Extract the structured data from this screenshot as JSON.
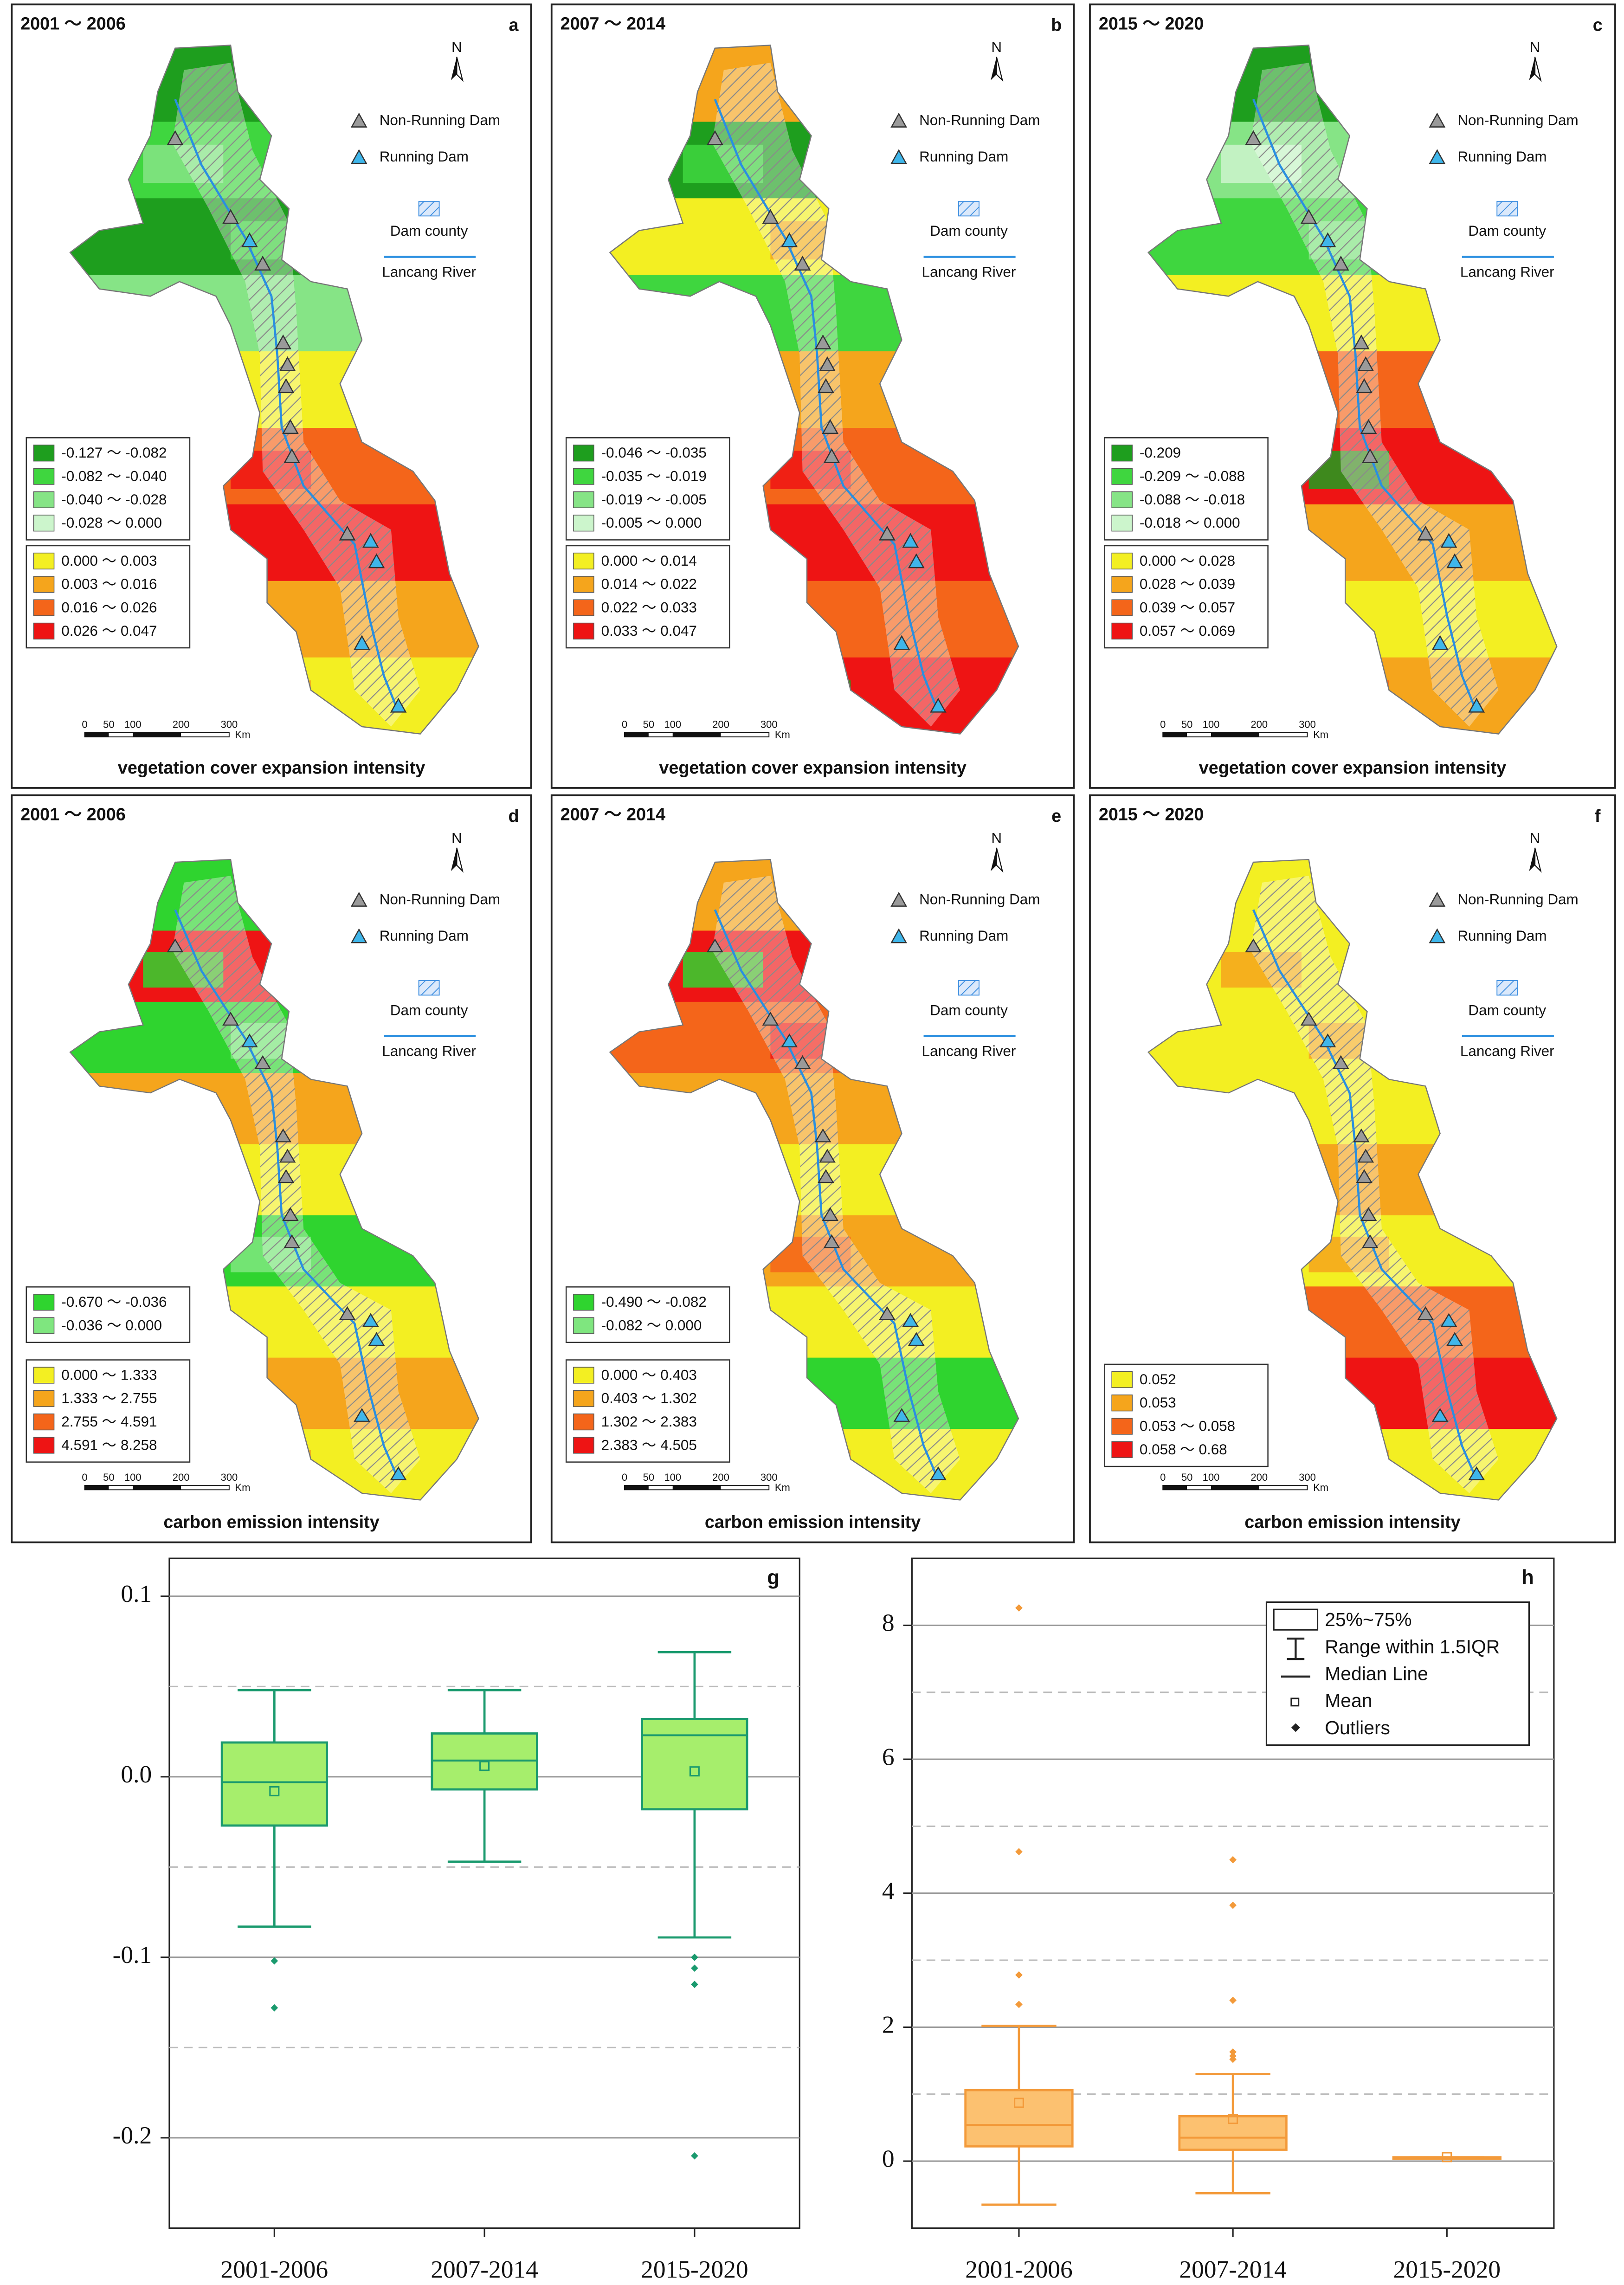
{
  "panels": [
    {
      "period": "2001 ～ 2006",
      "letter": "a",
      "caption": "vegetation cover expansion intensity",
      "negative": [
        {
          "label": "-0.127 ～ -0.082",
          "color": "#1e9e1e"
        },
        {
          "label": "-0.082 ～ -0.040",
          "color": "#3fd63f"
        },
        {
          "label": "-0.040 ～ -0.028",
          "color": "#86e486"
        },
        {
          "label": "-0.028 ～  0.000",
          "color": "#ccf5cc"
        }
      ],
      "positive": [
        {
          "label": "0.000 ～ 0.003",
          "color": "#f3ef22"
        },
        {
          "label": "0.003 ～ 0.016",
          "color": "#f5a51c"
        },
        {
          "label": "0.016 ～ 0.026",
          "color": "#f4651a"
        },
        {
          "label": "0.026 ～ 0.047",
          "color": "#ee1414"
        }
      ]
    },
    {
      "period": "2007 ～ 2014",
      "letter": "b",
      "caption": "vegetation cover expansion intensity",
      "negative": [
        {
          "label": "-0.046 ～ -0.035",
          "color": "#1e9e1e"
        },
        {
          "label": "-0.035 ～ -0.019",
          "color": "#3fd63f"
        },
        {
          "label": "-0.019 ～ -0.005",
          "color": "#86e486"
        },
        {
          "label": "-0.005 ～  0.000",
          "color": "#ccf5cc"
        }
      ],
      "positive": [
        {
          "label": "0.000 ～ 0.014",
          "color": "#f3ef22"
        },
        {
          "label": "0.014 ～ 0.022",
          "color": "#f5a51c"
        },
        {
          "label": "0.022 ～ 0.033",
          "color": "#f4651a"
        },
        {
          "label": "0.033 ～ 0.047",
          "color": "#ee1414"
        }
      ]
    },
    {
      "period": "2015 ～ 2020",
      "letter": "c",
      "caption": "vegetation cover expansion intensity",
      "negative": [
        {
          "label": "-0.209",
          "color": "#1e9e1e"
        },
        {
          "label": "-0.209 ～ -0.088",
          "color": "#3fd63f"
        },
        {
          "label": "-0.088 ～ -0.018",
          "color": "#86e486"
        },
        {
          "label": "-0.018 ～  0.000",
          "color": "#ccf5cc"
        }
      ],
      "positive": [
        {
          "label": "0.000 ～ 0.028",
          "color": "#f3ef22"
        },
        {
          "label": "0.028 ～ 0.039",
          "color": "#f5a51c"
        },
        {
          "label": "0.039 ～ 0.057",
          "color": "#f4651a"
        },
        {
          "label": "0.057 ～ 0.069",
          "color": "#ee1414"
        }
      ]
    },
    {
      "period": "2001 ～ 2006",
      "letter": "d",
      "caption": "carbon emission intensity",
      "negative": [
        {
          "label": "-0.670 ～ -0.036",
          "color": "#2fd42f"
        },
        {
          "label": "-0.036 ～ 0.000",
          "color": "#7fe67f"
        }
      ],
      "positive": [
        {
          "label": "0.000 ～ 1.333",
          "color": "#f3ef22"
        },
        {
          "label": "1.333 ～ 2.755",
          "color": "#f5a51c"
        },
        {
          "label": "2.755 ～ 4.591",
          "color": "#f4651a"
        },
        {
          "label": "4.591  ～ 8.258",
          "color": "#ee1414"
        }
      ]
    },
    {
      "period": "2007 ～ 2014",
      "letter": "e",
      "caption": "carbon emission intensity",
      "negative": [
        {
          "label": "-0.490 ～ -0.082",
          "color": "#2fd42f"
        },
        {
          "label": "-0.082 ～ 0.000",
          "color": "#7fe67f"
        }
      ],
      "positive": [
        {
          "label": "0.000 ～ 0.403",
          "color": "#f3ef22"
        },
        {
          "label": "0.403 ～ 1.302",
          "color": "#f5a51c"
        },
        {
          "label": "1.302 ～ 2.383",
          "color": "#f4651a"
        },
        {
          "label": "2.383 ～ 4.505",
          "color": "#ee1414"
        }
      ]
    },
    {
      "period": "2015 ～ 2020",
      "letter": "f",
      "caption": "carbon emission intensity",
      "negative": [],
      "positive": [
        {
          "label": "0.052",
          "color": "#f3ef22"
        },
        {
          "label": "0.053",
          "color": "#f5a51c"
        },
        {
          "label": "0.053 ～ 0.058",
          "color": "#f4651a"
        },
        {
          "label": "0.058  ～ 0.68",
          "color": "#ee1414"
        }
      ]
    }
  ],
  "map_legend": {
    "north": "N",
    "non_running": "Non-Running Dam",
    "running": "Running Dam",
    "dam_county": "Dam county",
    "river": "Lancang River",
    "scale": [
      0,
      50,
      100,
      200,
      300
    ],
    "unit": "Km"
  },
  "chart_data": [
    {
      "type": "box",
      "letter": "g",
      "categories": [
        "2001-2006",
        "2007-2014",
        "2015-2020"
      ],
      "color": "#a6ee6c",
      "edge_color": "#1a9a6e",
      "outlier_color": "#1a9a6e",
      "ylim": [
        -0.25,
        0.121
      ],
      "yticks": [
        {
          "value": 0.1,
          "label": "0.1"
        },
        {
          "value": 0,
          "label": "0.0"
        },
        -0.1,
        -0.2
      ],
      "minor_yticks": [
        0.05,
        -0.05,
        -0.15
      ],
      "boxes": [
        {
          "whisker_low": -0.083,
          "q1": -0.027,
          "median": -0.003,
          "q3": 0.019,
          "whisker_high": 0.048,
          "mean": -0.008,
          "outliers": [
            -0.102,
            -0.128
          ]
        },
        {
          "whisker_low": -0.047,
          "q1": -0.007,
          "median": 0.009,
          "q3": 0.024,
          "whisker_high": 0.048,
          "mean": 0.006,
          "outliers": []
        },
        {
          "whisker_low": -0.089,
          "q1": -0.018,
          "median": 0.023,
          "q3": 0.032,
          "whisker_high": 0.069,
          "mean": 0.003,
          "outliers": [
            -0.1,
            -0.106,
            -0.115,
            -0.21
          ]
        }
      ]
    },
    {
      "type": "box",
      "letter": "h",
      "categories": [
        "2001-2006",
        "2007-2014",
        "2015-2020"
      ],
      "color": "#fcc170",
      "edge_color": "#f39a3a",
      "outlier_color": "#f39a3a",
      "ylim": [
        -1,
        9
      ],
      "yticks": [
        0,
        2,
        4,
        6,
        8
      ],
      "minor_yticks": [
        1,
        3,
        5,
        7
      ],
      "legend": [
        "25%~75%",
        "Range within 1.5IQR",
        "Median Line",
        "Mean",
        "Outliers"
      ],
      "boxes": [
        {
          "whisker_low": -0.65,
          "q1": 0.22,
          "median": 0.54,
          "q3": 1.06,
          "whisker_high": 2.02,
          "mean": 0.87,
          "outliers": [
            8.26,
            4.62,
            2.78,
            2.34
          ]
        },
        {
          "whisker_low": -0.48,
          "q1": 0.17,
          "median": 0.35,
          "q3": 0.67,
          "whisker_high": 1.3,
          "mean": 0.63,
          "outliers": [
            4.5,
            3.82,
            2.4,
            1.63,
            1.57,
            1.52
          ]
        },
        {
          "whisker_low": 0.052,
          "q1": 0.052,
          "median": 0.053,
          "q3": 0.058,
          "whisker_high": 0.058,
          "mean": 0.06,
          "outliers": []
        }
      ]
    }
  ]
}
